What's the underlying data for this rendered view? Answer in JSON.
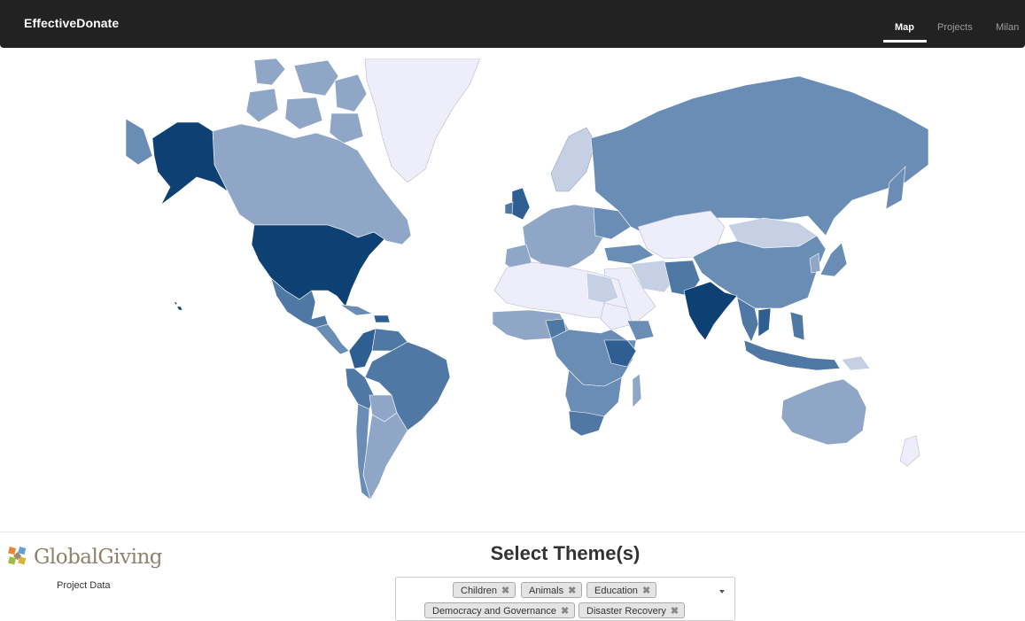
{
  "navbar": {
    "brand": "EffectiveDonate",
    "items": [
      {
        "label": "Map",
        "active": true
      },
      {
        "label": "Projects",
        "active": false
      },
      {
        "label": "Milan",
        "active": false
      }
    ]
  },
  "map": {
    "color_scale": [
      "#eeeefb",
      "#c6d0e4",
      "#8fa6c6",
      "#6a8db5",
      "#4f78a5",
      "#2f5e92",
      "#0d4173"
    ]
  },
  "sidebar": {
    "logo_text": "GlobalGiving",
    "caption": "Project Data"
  },
  "themes": {
    "title": "Select Theme(s)",
    "selected": [
      "Children",
      "Animals",
      "Education",
      "Democracy and Governance",
      "Disaster Recovery"
    ],
    "remove_glyph": "✖"
  }
}
